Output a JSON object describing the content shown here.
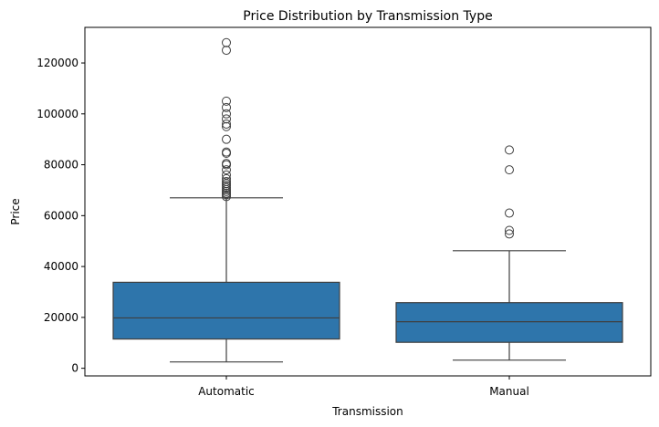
{
  "chart_data": {
    "type": "box",
    "title": "Price Distribution by Transmission Type",
    "xlabel": "Transmission",
    "ylabel": "Price",
    "ylim": [
      -3000,
      134000
    ],
    "yticks": [
      0,
      20000,
      40000,
      60000,
      80000,
      100000,
      120000
    ],
    "grid": false,
    "box_color": "#2e75ab",
    "line_color": "#3f3f3f",
    "categories": [
      "Automatic",
      "Manual"
    ],
    "boxes": [
      {
        "category": "Automatic",
        "whisker_low": 2500,
        "q1": 11500,
        "median": 19800,
        "q3": 33800,
        "whisker_high": 67000,
        "outliers": [
          67500,
          68200,
          68800,
          69500,
          70200,
          71000,
          71800,
          72600,
          73400,
          74500,
          76000,
          78000,
          80000,
          80500,
          84500,
          85000,
          90000,
          95000,
          96000,
          98000,
          100000,
          102500,
          105000,
          125000,
          128000
        ]
      },
      {
        "category": "Manual",
        "whisker_low": 3200,
        "q1": 10200,
        "median": 18300,
        "q3": 25800,
        "whisker_high": 46200,
        "outliers": [
          52800,
          54200,
          61000,
          78000,
          85800
        ]
      }
    ]
  }
}
